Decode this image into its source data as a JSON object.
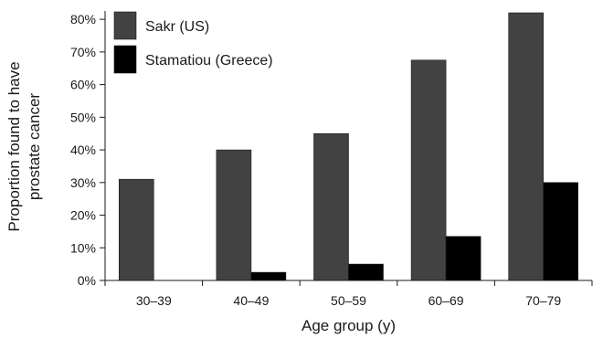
{
  "chart_data": {
    "type": "bar",
    "title": "",
    "categories": [
      "30–39",
      "40–49",
      "50–59",
      "60–69",
      "70–79"
    ],
    "series": [
      {
        "name": "Sakr (US)",
        "color": "#424242",
        "values": [
          31,
          40,
          45,
          67.5,
          82
        ]
      },
      {
        "name": "Stamatiou (Greece)",
        "color": "#000000",
        "values": [
          0,
          2.5,
          5,
          13.5,
          30
        ]
      }
    ],
    "xlabel": "Age group (y)",
    "ylabel_lines": [
      "Proportion found to have",
      "prostate cancer"
    ],
    "ylim": [
      0,
      82
    ],
    "yticks": [
      0,
      10,
      20,
      30,
      40,
      50,
      60,
      70,
      80
    ],
    "ytick_labels": [
      "0%",
      "10%",
      "20%",
      "30%",
      "40%",
      "50%",
      "60%",
      "70%",
      "80%"
    ],
    "grid": false,
    "legend_position": "top-left"
  }
}
